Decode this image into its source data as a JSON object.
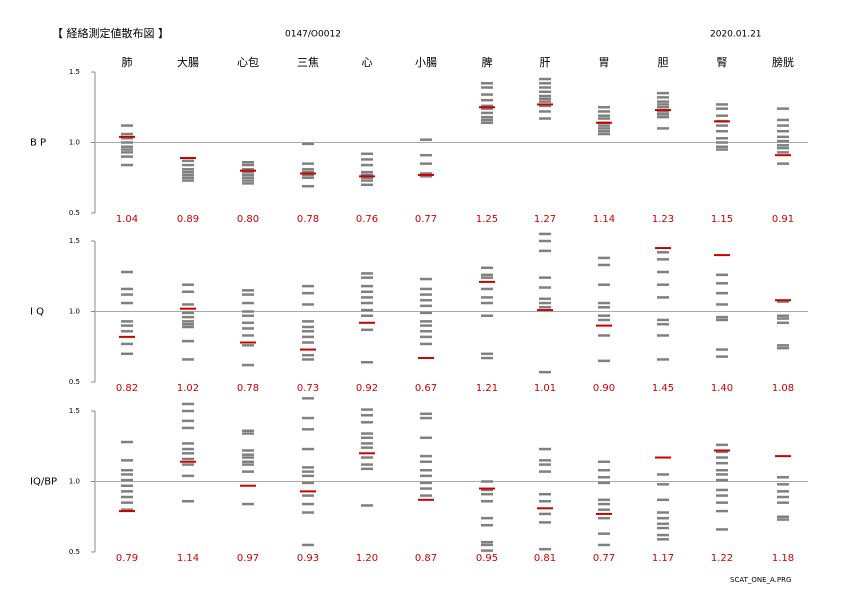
{
  "header": {
    "title": "【 経絡測定値散布図 】",
    "id": "0147/O0012",
    "date": "2020.01.21"
  },
  "footer": "SCAT_ONE_A.PRG",
  "chart_data": [
    {
      "type": "scatter",
      "y_label": "B P",
      "categories": [
        "肺",
        "大腸",
        "心包",
        "三焦",
        "心",
        "小腸",
        "脾",
        "肝",
        "胃",
        "胆",
        "腎",
        "膀胱"
      ],
      "ylim": [
        0.5,
        1.5
      ],
      "yticks": [
        0.5,
        {
          "value": 1,
          "label": "1.0"
        },
        1.5
      ],
      "mean_color": "#cc0000",
      "point_color": "#808080",
      "values": [
        1.04,
        0.89,
        0.8,
        0.78,
        0.76,
        0.77,
        1.25,
        1.27,
        1.14,
        1.23,
        1.15,
        0.91
      ],
      "value_labels": [
        "1.04",
        "0.89",
        "0.80",
        "0.78",
        "0.76",
        "0.77",
        "1.25",
        "1.27",
        "1.14",
        "1.23",
        "1.15",
        "0.91"
      ],
      "points": [
        [
          1.12,
          1.06,
          1.03,
          1.0,
          0.97,
          0.95,
          0.93,
          0.9,
          0.84
        ],
        [
          0.87,
          0.84,
          0.81,
          0.79,
          0.77,
          0.75,
          0.73
        ],
        [
          0.86,
          0.84,
          0.81,
          0.79,
          0.77,
          0.75,
          0.73,
          0.71
        ],
        [
          0.99,
          0.85,
          0.81,
          0.79,
          0.77,
          0.75,
          0.69
        ],
        [
          0.92,
          0.88,
          0.84,
          0.79,
          0.77,
          0.75,
          0.73,
          0.7
        ],
        [
          1.02,
          0.91,
          0.85,
          0.78,
          0.76
        ],
        [
          1.42,
          1.39,
          1.34,
          1.3,
          1.26,
          1.24,
          1.21,
          1.18,
          1.16,
          1.14
        ],
        [
          1.45,
          1.42,
          1.39,
          1.36,
          1.33,
          1.31,
          1.29,
          1.26,
          1.22,
          1.17
        ],
        [
          1.25,
          1.22,
          1.19,
          1.17,
          1.14,
          1.12,
          1.1,
          1.08,
          1.06
        ],
        [
          1.35,
          1.32,
          1.29,
          1.27,
          1.25,
          1.22,
          1.2,
          1.18,
          1.1
        ],
        [
          1.27,
          1.24,
          1.19,
          1.15,
          1.12,
          1.08,
          1.03,
          1.0,
          0.97,
          0.95
        ],
        [
          1.24,
          1.16,
          1.12,
          1.08,
          1.04,
          1.01,
          0.98,
          0.96,
          0.93,
          0.85
        ]
      ]
    },
    {
      "type": "scatter",
      "y_label": "I Q",
      "ylim": [
        0.5,
        1.5
      ],
      "yticks": [
        0.5,
        {
          "value": 1,
          "label": "1.0"
        },
        1.5
      ],
      "mean_color": "#cc0000",
      "point_color": "#808080",
      "values": [
        0.82,
        1.02,
        0.78,
        0.73,
        0.92,
        0.67,
        1.21,
        1.01,
        0.9,
        1.45,
        1.4,
        1.08
      ],
      "value_labels": [
        "0.82",
        "1.02",
        "0.78",
        "0.73",
        "0.92",
        "0.67",
        "1.21",
        "1.01",
        "0.90",
        "1.45",
        "1.40",
        "1.08"
      ],
      "points": [
        [
          1.28,
          1.16,
          1.12,
          1.06,
          0.93,
          0.9,
          0.86,
          0.77,
          0.7
        ],
        [
          1.19,
          1.14,
          1.05,
          0.99,
          0.96,
          0.93,
          0.91,
          0.89,
          0.79,
          0.66
        ],
        [
          1.15,
          1.12,
          1.06,
          1.0,
          0.97,
          0.92,
          0.88,
          0.83,
          0.76,
          0.62
        ],
        [
          1.18,
          1.13,
          1.05,
          0.93,
          0.89,
          0.86,
          0.82,
          0.78,
          0.69,
          0.66
        ],
        [
          1.27,
          1.24,
          1.18,
          1.14,
          1.1,
          1.06,
          1.01,
          0.97,
          0.87,
          0.64
        ],
        [
          1.23,
          1.16,
          1.12,
          1.08,
          1.04,
          0.99,
          0.93,
          0.9,
          0.86,
          0.82,
          0.77
        ],
        [
          1.31,
          1.26,
          1.24,
          1.16,
          1.1,
          1.06,
          0.97,
          0.7,
          0.67
        ],
        [
          1.55,
          1.5,
          1.43,
          1.24,
          1.17,
          1.09,
          1.06,
          1.03,
          0.57
        ],
        [
          1.38,
          1.33,
          1.19,
          1.06,
          1.03,
          0.97,
          0.94,
          0.83,
          0.65
        ],
        [
          1.42,
          1.37,
          1.28,
          1.19,
          1.1,
          0.94,
          0.91,
          0.83,
          0.66
        ],
        [
          1.26,
          1.2,
          1.13,
          1.05,
          0.96,
          0.94,
          0.73,
          0.68
        ],
        [
          1.07,
          0.97,
          0.95,
          0.92,
          0.76,
          0.74
        ]
      ]
    },
    {
      "type": "scatter",
      "y_label": "IQ/BP",
      "ylim": [
        0.5,
        1.5
      ],
      "yticks": [
        0.5,
        {
          "value": 1,
          "label": "1.0"
        },
        1.5
      ],
      "mean_color": "#cc0000",
      "point_color": "#808080",
      "values": [
        0.79,
        1.14,
        0.97,
        0.93,
        1.2,
        0.87,
        0.95,
        0.81,
        0.77,
        1.17,
        1.22,
        1.18
      ],
      "value_labels": [
        "0.79",
        "1.14",
        "0.97",
        "0.93",
        "1.20",
        "0.87",
        "0.95",
        "0.81",
        "0.77",
        "1.17",
        "1.22",
        "1.18"
      ],
      "points": [
        [
          1.28,
          1.15,
          1.08,
          1.05,
          1.01,
          0.97,
          0.93,
          0.89,
          0.85,
          0.8
        ],
        [
          1.55,
          1.5,
          1.43,
          1.38,
          1.27,
          1.23,
          1.2,
          1.16,
          1.12,
          1.04,
          0.86
        ],
        [
          1.36,
          1.34,
          1.22,
          1.19,
          1.17,
          1.14,
          1.12,
          1.07,
          0.84
        ],
        [
          1.59,
          1.45,
          1.37,
          1.23,
          1.1,
          1.07,
          1.04,
          0.99,
          0.9,
          0.84,
          0.78,
          0.55
        ],
        [
          1.51,
          1.47,
          1.42,
          1.34,
          1.31,
          1.27,
          1.24,
          1.17,
          1.12,
          1.09,
          0.83
        ],
        [
          1.48,
          1.45,
          1.31,
          1.18,
          1.14,
          1.08,
          1.04,
          0.99,
          0.95,
          0.9
        ],
        [
          1.0,
          0.94,
          0.91,
          0.86,
          0.74,
          0.69,
          0.57,
          0.55,
          0.51
        ],
        [
          1.23,
          1.15,
          1.12,
          1.07,
          0.91,
          0.86,
          0.77,
          0.71,
          0.52
        ],
        [
          1.14,
          1.08,
          1.03,
          0.99,
          0.87,
          0.84,
          0.8,
          0.74,
          0.63,
          0.55
        ],
        [
          1.05,
          0.98,
          0.87,
          0.78,
          0.74,
          0.7,
          0.67,
          0.62,
          0.59
        ],
        [
          1.26,
          1.21,
          1.17,
          1.13,
          1.08,
          1.05,
          1.01,
          0.94,
          0.9,
          0.85,
          0.79,
          0.66
        ],
        [
          1.03,
          0.98,
          0.93,
          0.89,
          0.85,
          0.75,
          0.73
        ]
      ]
    }
  ]
}
